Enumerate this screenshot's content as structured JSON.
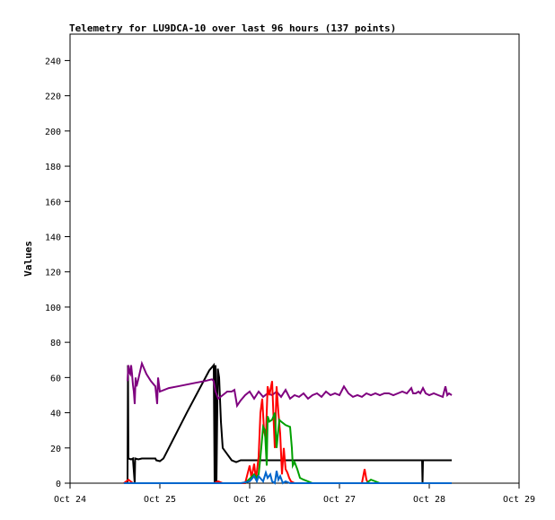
{
  "chart_data": {
    "type": "line",
    "title": "Telemetry for LU9DCA-10 over last 96 hours (137 points)",
    "xlabel": "",
    "ylabel": "Values",
    "xlim": [
      0,
      5
    ],
    "ylim": [
      0,
      255
    ],
    "x_tick_values": [
      0,
      1,
      2,
      3,
      4,
      5
    ],
    "x_tick_labels": [
      "Oct 24",
      "Oct 25",
      "Oct 26",
      "Oct 27",
      "Oct 28",
      "Oct 29"
    ],
    "y_ticks": [
      0,
      20,
      40,
      60,
      80,
      100,
      120,
      140,
      160,
      180,
      200,
      220,
      240
    ],
    "grid": false,
    "legend": "none",
    "series": [
      {
        "color": "#000000",
        "points": [
          [
            0.64,
            0
          ],
          [
            0.645,
            67
          ],
          [
            0.65,
            14
          ],
          [
            0.68,
            13.5
          ],
          [
            0.7,
            14
          ],
          [
            0.72,
            0
          ],
          [
            0.725,
            14
          ],
          [
            0.76,
            13.5
          ],
          [
            0.8,
            14
          ],
          [
            0.9,
            14
          ],
          [
            0.95,
            14
          ],
          [
            0.96,
            13
          ],
          [
            1.0,
            12.5
          ],
          [
            1.04,
            14
          ],
          [
            1.3,
            40
          ],
          [
            1.55,
            64
          ],
          [
            1.6,
            67
          ],
          [
            1.61,
            0
          ],
          [
            1.62,
            67
          ],
          [
            1.63,
            0
          ],
          [
            1.645,
            65
          ],
          [
            1.66,
            60
          ],
          [
            1.68,
            35
          ],
          [
            1.7,
            20
          ],
          [
            1.8,
            13
          ],
          [
            1.85,
            12
          ],
          [
            1.9,
            13
          ],
          [
            2.5,
            13
          ],
          [
            3.0,
            13
          ],
          [
            3.5,
            13
          ],
          [
            3.92,
            13
          ],
          [
            3.925,
            0
          ],
          [
            3.93,
            13
          ],
          [
            4.1,
            13
          ],
          [
            4.25,
            13
          ]
        ]
      },
      {
        "color": "#7f007f",
        "points": [
          [
            0.64,
            58
          ],
          [
            0.65,
            67
          ],
          [
            0.66,
            63
          ],
          [
            0.67,
            62
          ],
          [
            0.68,
            67
          ],
          [
            0.69,
            62
          ],
          [
            0.7,
            56
          ],
          [
            0.71,
            52
          ],
          [
            0.72,
            45
          ],
          [
            0.73,
            60
          ],
          [
            0.74,
            55
          ],
          [
            0.76,
            59
          ],
          [
            0.8,
            68
          ],
          [
            0.85,
            62
          ],
          [
            0.9,
            58
          ],
          [
            0.95,
            55
          ],
          [
            0.97,
            45
          ],
          [
            0.98,
            60
          ],
          [
            1.0,
            52
          ],
          [
            1.1,
            54
          ],
          [
            1.2,
            55
          ],
          [
            1.3,
            56
          ],
          [
            1.4,
            57
          ],
          [
            1.5,
            58
          ],
          [
            1.58,
            59
          ],
          [
            1.6,
            58
          ],
          [
            1.62,
            52
          ],
          [
            1.65,
            48
          ],
          [
            1.7,
            50
          ],
          [
            1.75,
            52
          ],
          [
            1.8,
            52
          ],
          [
            1.83,
            53
          ],
          [
            1.86,
            44
          ],
          [
            1.9,
            47
          ],
          [
            1.95,
            50
          ],
          [
            2.0,
            52
          ],
          [
            2.05,
            48
          ],
          [
            2.1,
            52
          ],
          [
            2.15,
            49
          ],
          [
            2.2,
            51
          ],
          [
            2.25,
            50
          ],
          [
            2.3,
            52
          ],
          [
            2.35,
            49
          ],
          [
            2.4,
            53
          ],
          [
            2.42,
            51
          ],
          [
            2.45,
            48
          ],
          [
            2.5,
            50
          ],
          [
            2.55,
            49
          ],
          [
            2.6,
            51
          ],
          [
            2.65,
            48
          ],
          [
            2.7,
            50
          ],
          [
            2.75,
            51
          ],
          [
            2.8,
            49
          ],
          [
            2.85,
            52
          ],
          [
            2.9,
            50
          ],
          [
            2.95,
            51
          ],
          [
            3.0,
            50
          ],
          [
            3.05,
            55
          ],
          [
            3.1,
            51
          ],
          [
            3.15,
            49
          ],
          [
            3.2,
            50
          ],
          [
            3.25,
            49
          ],
          [
            3.3,
            51
          ],
          [
            3.35,
            50
          ],
          [
            3.4,
            51
          ],
          [
            3.45,
            50
          ],
          [
            3.5,
            51
          ],
          [
            3.55,
            51
          ],
          [
            3.6,
            50
          ],
          [
            3.65,
            51
          ],
          [
            3.7,
            52
          ],
          [
            3.75,
            51
          ],
          [
            3.8,
            54
          ],
          [
            3.82,
            51
          ],
          [
            3.85,
            51
          ],
          [
            3.88,
            52
          ],
          [
            3.9,
            51
          ],
          [
            3.93,
            54
          ],
          [
            3.96,
            51
          ],
          [
            4.0,
            50
          ],
          [
            4.05,
            51
          ],
          [
            4.1,
            50
          ],
          [
            4.15,
            49
          ],
          [
            4.18,
            55
          ],
          [
            4.2,
            50
          ],
          [
            4.22,
            51
          ],
          [
            4.25,
            50
          ]
        ]
      },
      {
        "color": "#ff0000",
        "points": [
          [
            0.6,
            0
          ],
          [
            0.65,
            2
          ],
          [
            0.7,
            0
          ],
          [
            1.6,
            0
          ],
          [
            1.65,
            1
          ],
          [
            1.7,
            0
          ],
          [
            1.95,
            0
          ],
          [
            2.0,
            10
          ],
          [
            2.02,
            3
          ],
          [
            2.05,
            11
          ],
          [
            2.07,
            2
          ],
          [
            2.1,
            15
          ],
          [
            2.12,
            40
          ],
          [
            2.14,
            48
          ],
          [
            2.16,
            30
          ],
          [
            2.18,
            25
          ],
          [
            2.2,
            55
          ],
          [
            2.22,
            50
          ],
          [
            2.25,
            58
          ],
          [
            2.27,
            32
          ],
          [
            2.28,
            20
          ],
          [
            2.3,
            55
          ],
          [
            2.32,
            40
          ],
          [
            2.34,
            28
          ],
          [
            2.36,
            5
          ],
          [
            2.38,
            20
          ],
          [
            2.4,
            8
          ],
          [
            2.42,
            6
          ],
          [
            2.44,
            3
          ],
          [
            2.46,
            1
          ],
          [
            2.5,
            0
          ],
          [
            3.0,
            0
          ],
          [
            3.2,
            0
          ],
          [
            3.25,
            0
          ],
          [
            3.28,
            8
          ],
          [
            3.3,
            2
          ],
          [
            3.32,
            0
          ],
          [
            3.5,
            0
          ],
          [
            4.25,
            0
          ]
        ]
      },
      {
        "color": "#00a000",
        "points": [
          [
            1.95,
            0
          ],
          [
            2.05,
            5
          ],
          [
            2.08,
            3
          ],
          [
            2.1,
            5
          ],
          [
            2.12,
            15
          ],
          [
            2.15,
            32
          ],
          [
            2.17,
            30
          ],
          [
            2.19,
            10
          ],
          [
            2.2,
            38
          ],
          [
            2.22,
            35
          ],
          [
            2.25,
            36
          ],
          [
            2.28,
            40
          ],
          [
            2.3,
            20
          ],
          [
            2.33,
            36
          ],
          [
            2.35,
            35
          ],
          [
            2.4,
            33
          ],
          [
            2.45,
            32
          ],
          [
            2.47,
            20
          ],
          [
            2.48,
            10
          ],
          [
            2.5,
            12
          ],
          [
            2.53,
            8
          ],
          [
            2.56,
            3
          ],
          [
            2.6,
            2
          ],
          [
            2.65,
            1
          ],
          [
            2.7,
            0
          ],
          [
            3.0,
            0
          ],
          [
            3.3,
            0
          ],
          [
            3.35,
            2
          ],
          [
            3.4,
            1
          ],
          [
            3.45,
            0
          ],
          [
            3.6,
            0
          ],
          [
            4.25,
            0
          ]
        ]
      },
      {
        "color": "#0066cc",
        "points": [
          [
            0.6,
            0
          ],
          [
            1.9,
            0
          ],
          [
            2.0,
            1
          ],
          [
            2.05,
            4
          ],
          [
            2.08,
            1
          ],
          [
            2.1,
            4
          ],
          [
            2.15,
            1
          ],
          [
            2.18,
            6
          ],
          [
            2.2,
            3
          ],
          [
            2.23,
            5
          ],
          [
            2.25,
            1
          ],
          [
            2.28,
            0
          ],
          [
            2.3,
            7
          ],
          [
            2.32,
            2
          ],
          [
            2.34,
            4
          ],
          [
            2.37,
            0
          ],
          [
            2.4,
            1
          ],
          [
            2.45,
            0
          ],
          [
            3.0,
            0
          ],
          [
            4.25,
            0
          ]
        ]
      }
    ]
  }
}
